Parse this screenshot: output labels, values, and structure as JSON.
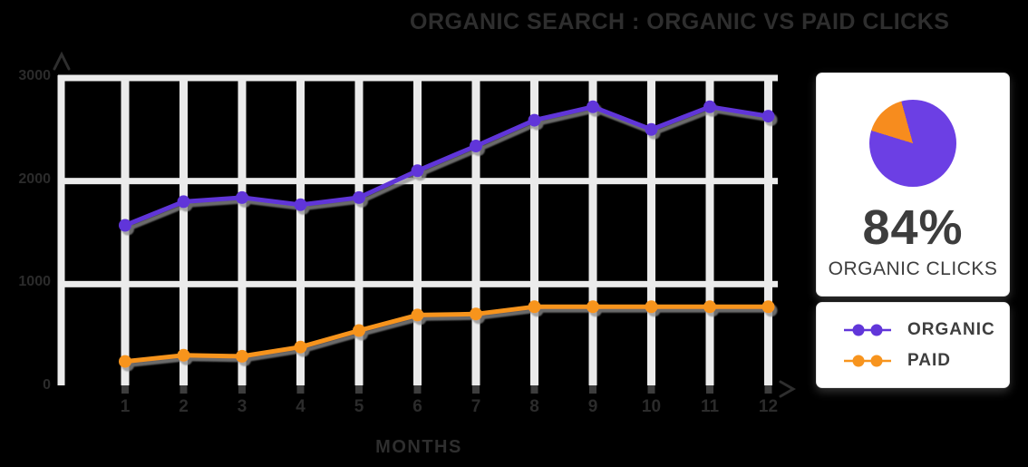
{
  "title": "ORGANIC SEARCH : ORGANIC VS PAID CLICKS",
  "chart_data": [
    {
      "type": "line",
      "xlabel": "MONTHS",
      "x": [
        1,
        2,
        3,
        4,
        5,
        6,
        7,
        8,
        9,
        10,
        11,
        12
      ],
      "y_ticks": [
        0,
        1000,
        2000,
        3000
      ],
      "ylim": [
        0,
        3000
      ],
      "grid": true,
      "legend_position": "right-card",
      "series": [
        {
          "name": "ORGANIC",
          "color": "#6136d9",
          "values": [
            1570,
            1800,
            1840,
            1770,
            1840,
            2100,
            2340,
            2590,
            2720,
            2500,
            2720,
            2630
          ]
        },
        {
          "name": "PAID",
          "color": "#f7941e",
          "values": [
            250,
            310,
            300,
            390,
            550,
            700,
            710,
            780,
            780,
            780,
            780,
            780
          ]
        }
      ]
    },
    {
      "type": "pie",
      "labels": [
        "ORGANIC",
        "PAID"
      ],
      "values": [
        84,
        16
      ],
      "colors": [
        "#6c3fe4",
        "#f78c1e"
      ],
      "center_label": "84%",
      "caption": "ORGANIC CLICKS"
    }
  ],
  "colors": {
    "background": "#000000",
    "gridline": "#ebebeb",
    "axis_text": "#2b2b2b",
    "tick_stub": "#3d3d3d",
    "card_background": "#ffffff",
    "card_text": "#3d3d3d"
  }
}
